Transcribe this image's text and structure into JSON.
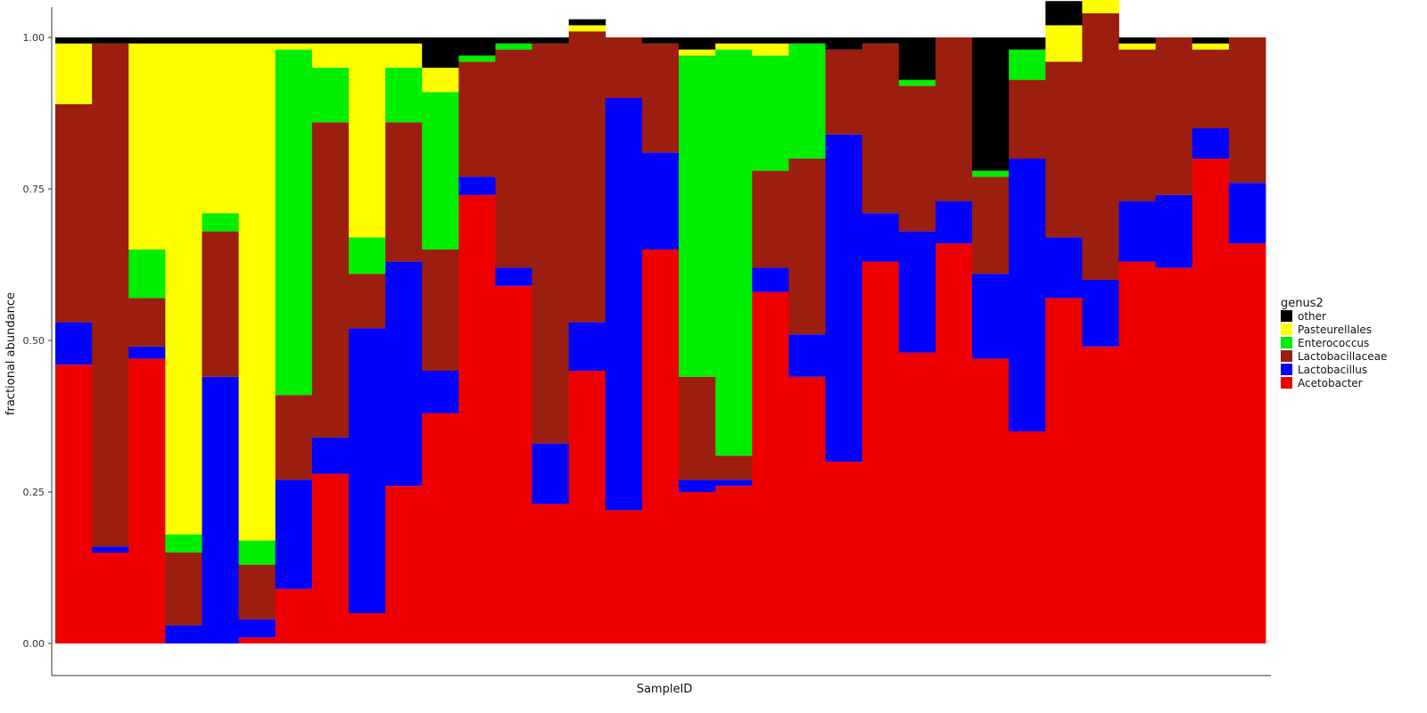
{
  "chart_data": {
    "type": "bar",
    "stacked": true,
    "xlabel": "SampleID",
    "ylabel": "fractional abundance",
    "ylim": [
      0,
      1
    ],
    "yticks": [
      "0.00",
      "0.25",
      "0.50",
      "0.75",
      "1.00"
    ],
    "grid": false,
    "legend": {
      "title": "genus2",
      "placement": "right",
      "entries": [
        "other",
        "Pasteurellales",
        "Enterococcus",
        "Lactobacillaceae",
        "Lactobacillus",
        "Acetobacter"
      ]
    },
    "colors": {
      "other": "#000000",
      "Pasteurellales": "#ffff00",
      "Enterococcus": "#00ee00",
      "Lactobacillaceae": "#9b1e0e",
      "Lactobacillus": "#0000ff",
      "Acetobacter": "#ee0000"
    },
    "series": [
      {
        "name": "Acetobacter",
        "values": [
          0.46,
          0.15,
          0.47,
          0.0,
          0.0,
          0.01,
          0.09,
          0.28,
          0.05,
          0.26,
          0.38,
          0.74,
          0.59,
          0.23,
          0.45,
          0.22,
          0.65,
          0.25,
          0.26,
          0.58,
          0.44,
          0.3,
          0.63,
          0.48,
          0.66,
          0.47,
          0.35,
          0.57,
          0.49,
          0.63,
          0.62,
          0.8,
          0.66
        ]
      },
      {
        "name": "Lactobacillus",
        "values": [
          0.07,
          0.01,
          0.02,
          0.03,
          0.44,
          0.03,
          0.18,
          0.06,
          0.47,
          0.37,
          0.07,
          0.03,
          0.03,
          0.1,
          0.08,
          0.68,
          0.16,
          0.02,
          0.01,
          0.04,
          0.07,
          0.54,
          0.08,
          0.2,
          0.07,
          0.14,
          0.45,
          0.1,
          0.11,
          0.1,
          0.12,
          0.05,
          0.1
        ]
      },
      {
        "name": "Lactobacillaceae",
        "values": [
          0.36,
          0.83,
          0.08,
          0.12,
          0.24,
          0.09,
          0.14,
          0.52,
          0.09,
          0.23,
          0.2,
          0.19,
          0.36,
          0.66,
          0.48,
          0.1,
          0.18,
          0.17,
          0.04,
          0.16,
          0.29,
          0.14,
          0.28,
          0.24,
          0.27,
          0.16,
          0.13,
          0.29,
          0.44,
          0.25,
          0.26,
          0.13,
          0.24
        ]
      },
      {
        "name": "Enterococcus",
        "values": [
          0.0,
          0.0,
          0.08,
          0.03,
          0.03,
          0.04,
          0.57,
          0.09,
          0.06,
          0.09,
          0.26,
          0.01,
          0.01,
          0.0,
          0.0,
          0.0,
          0.0,
          0.53,
          0.67,
          0.19,
          0.19,
          0.0,
          0.0,
          0.01,
          0.0,
          0.01,
          0.05,
          0.0,
          0.0,
          0.0,
          0.0,
          0.0,
          0.0
        ]
      },
      {
        "name": "Pasteurellales",
        "values": [
          0.1,
          0.0,
          0.34,
          0.81,
          0.28,
          0.82,
          0.01,
          0.04,
          0.32,
          0.04,
          0.04,
          0.0,
          0.0,
          0.0,
          0.01,
          0.0,
          0.0,
          0.01,
          0.01,
          0.02,
          0.0,
          0.0,
          0.0,
          0.0,
          0.0,
          0.0,
          0.0,
          0.06,
          0.06,
          0.01,
          0.0,
          0.01,
          0.0
        ]
      },
      {
        "name": "other",
        "values": [
          0.01,
          0.01,
          0.01,
          0.01,
          0.01,
          0.01,
          0.01,
          0.01,
          0.01,
          0.01,
          0.05,
          0.03,
          0.01,
          0.01,
          0.01,
          0.0,
          0.01,
          0.02,
          0.01,
          0.01,
          0.01,
          0.02,
          0.01,
          0.07,
          0.0,
          0.22,
          0.02,
          0.04,
          0.0,
          0.01,
          0.0,
          0.01,
          0.0
        ]
      }
    ]
  }
}
